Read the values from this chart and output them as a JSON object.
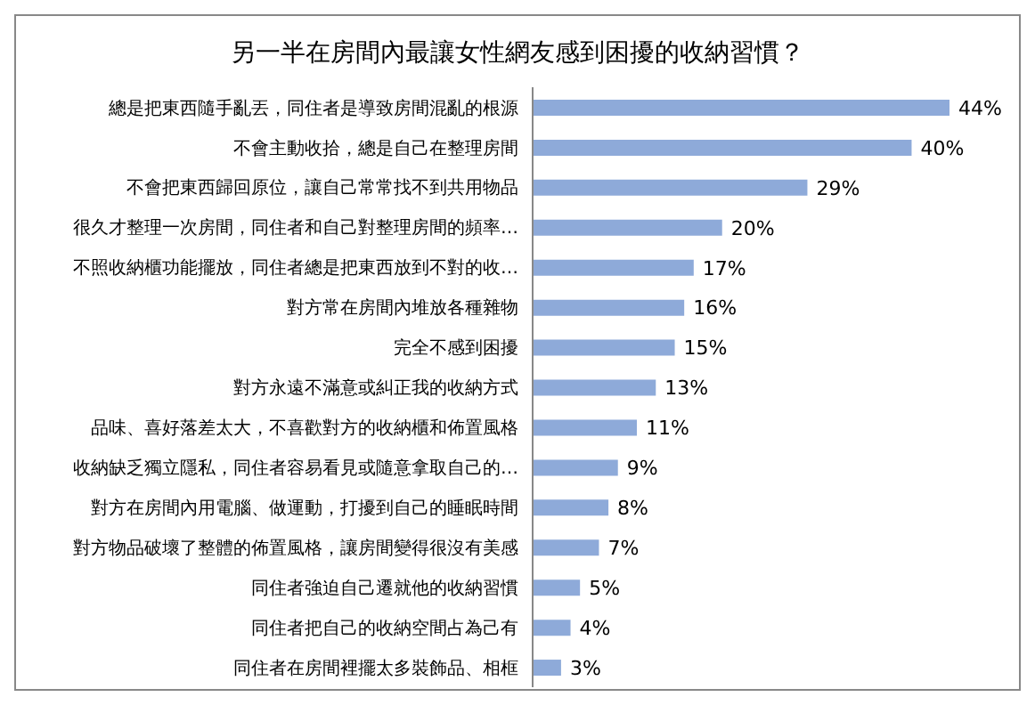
{
  "chart_data": {
    "type": "bar",
    "orientation": "horizontal",
    "title": "另一半在房間內最讓女性網友感到困擾的收納習慣？",
    "categories": [
      "總是把東西隨手亂丟，同住者是導致房間混亂的根源",
      "不會主動收拾，總是自己在整理房間",
      "不會把東西歸回原位，讓自己常常找不到共用物品",
      "很久才整理一次房間，同住者和自己對整理房間的頻率…",
      "不照收納櫃功能擺放，同住者總是把東西放到不對的收…",
      "對方常在房間內堆放各種雜物",
      "完全不感到困擾",
      "對方永遠不滿意或糾正我的收納方式",
      "品味、喜好落差太大，不喜歡對方的收納櫃和佈置風格",
      "收納缺乏獨立隱私，同住者容易看見或隨意拿取自己的…",
      "對方在房間內用電腦、做運動，打擾到自己的睡眠時間",
      "對方物品破壞了整體的佈置風格，讓房間變得很沒有美感",
      "同住者強迫自己遷就他的收納習慣",
      "同住者把自己的收納空間占為己有",
      "同住者在房間裡擺太多裝飾品、相框"
    ],
    "values": [
      44,
      40,
      29,
      20,
      17,
      16,
      15,
      13,
      11,
      9,
      8,
      7,
      5,
      4,
      3
    ],
    "value_labels": [
      "44%",
      "40%",
      "29%",
      "20%",
      "17%",
      "16%",
      "15%",
      "13%",
      "11%",
      "9%",
      "8%",
      "7%",
      "5%",
      "4%",
      "3%"
    ],
    "color": "#8eaad9",
    "tick_labels": "y"
  }
}
